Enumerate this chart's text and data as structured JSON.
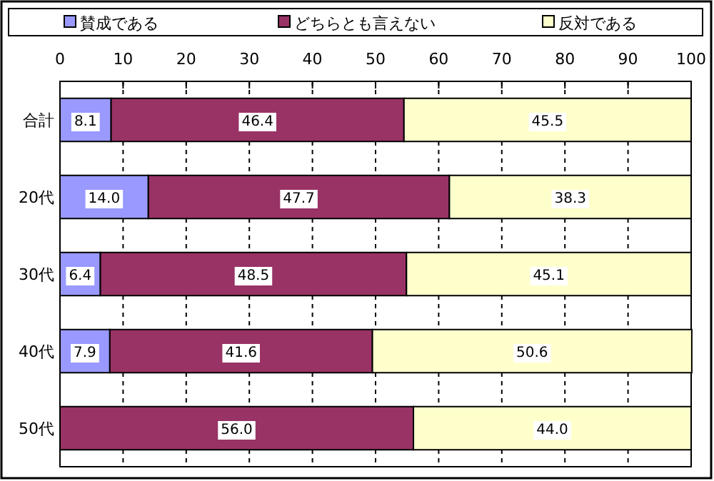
{
  "chart_data": {
    "type": "bar",
    "orientation": "horizontal",
    "stacked": true,
    "categories": [
      "合計",
      "20代",
      "30代",
      "40代",
      "50代"
    ],
    "series": [
      {
        "name": "賛成である",
        "color": "#9999ff",
        "values": [
          8.1,
          14.0,
          6.4,
          7.9,
          0
        ],
        "value_labels": [
          "8.1",
          "14.0",
          "6.4",
          "7.9",
          null
        ]
      },
      {
        "name": "どちらとも言えない",
        "color": "#993366",
        "values": [
          46.4,
          47.7,
          48.5,
          41.6,
          56.0
        ],
        "value_labels": [
          "46.4",
          "47.7",
          "48.5",
          "41.6",
          "56.0"
        ]
      },
      {
        "name": "反対である",
        "color": "#ffffcc",
        "values": [
          45.5,
          38.3,
          45.1,
          50.6,
          44.0
        ],
        "value_labels": [
          "45.5",
          "38.3",
          "45.1",
          "50.6",
          "44.0"
        ]
      }
    ],
    "xlim": [
      0,
      100
    ],
    "xticks": [
      0,
      10,
      20,
      30,
      40,
      50,
      60,
      70,
      80,
      90,
      100
    ],
    "grid": "x",
    "legend": "top"
  }
}
